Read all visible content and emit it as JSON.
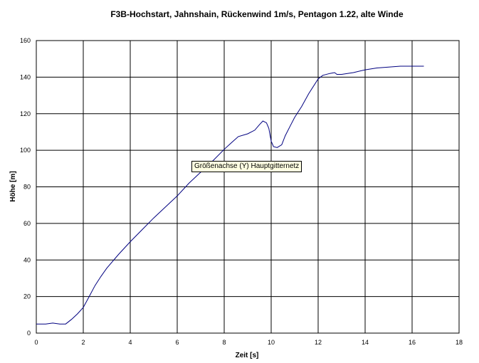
{
  "chart_data": {
    "type": "line",
    "title": "F3B-Hochstart, Jahnshain, Rückenwind 1m/s, Pentagon 1.22, alte Winde",
    "xlabel": "Zeit [s]",
    "ylabel": "Höhe [m]",
    "xlim": [
      0,
      18
    ],
    "ylim": [
      0,
      160
    ],
    "xticks": [
      0,
      2,
      4,
      6,
      8,
      10,
      12,
      14,
      16,
      18
    ],
    "yticks": [
      0,
      20,
      40,
      60,
      80,
      100,
      120,
      140,
      160
    ],
    "grid": true,
    "line_color": "#000080",
    "series": [
      {
        "x": [
          0,
          0.4,
          0.7,
          1.0,
          1.25,
          1.5,
          1.75,
          2.0,
          2.25,
          2.5,
          2.75,
          3.0,
          3.5,
          4.0,
          4.5,
          5.0,
          5.5,
          6.0,
          6.5,
          7.0,
          7.5,
          8.0,
          8.3,
          8.6,
          9.0,
          9.3,
          9.5,
          9.65,
          9.8,
          9.9,
          10.0,
          10.1,
          10.25,
          10.45,
          10.6,
          10.8,
          11.0,
          11.3,
          11.6,
          12.0,
          12.2,
          12.5,
          12.7,
          12.8,
          13.0,
          13.5,
          14.0,
          14.5,
          15.0,
          15.5,
          16.0,
          16.5
        ],
        "y": [
          5,
          5,
          5.5,
          5,
          5,
          7.5,
          10.5,
          14,
          20,
          26,
          31,
          35.5,
          43,
          50,
          56.5,
          63,
          69,
          75,
          82,
          88,
          94,
          100.5,
          104,
          107.5,
          109,
          111,
          114,
          116,
          115,
          112,
          105,
          102,
          101.5,
          103,
          108,
          113,
          118,
          124,
          131,
          139,
          141,
          142,
          142.5,
          141.5,
          141.5,
          142.5,
          144,
          145,
          145.5,
          146,
          146,
          146
        ]
      }
    ],
    "tooltip": "Größenachse (Y) Hauptgitternetz"
  }
}
